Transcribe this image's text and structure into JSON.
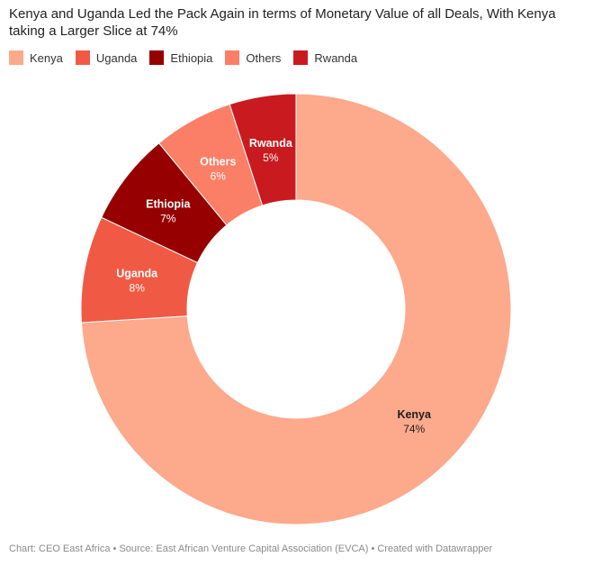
{
  "title": "Kenya and Uganda Led the Pack Again in terms of Monetary Value of all Deals, With Kenya taking a Larger Slice at 74%",
  "footer": "Chart: CEO East Africa • Source: East African Venture Capital Association (EVCA) • Created with Datawrapper",
  "chart_data": {
    "type": "pie",
    "variant": "donut",
    "title": "Kenya and Uganda Led the Pack Again in terms of Monetary Value of all Deals, With Kenya taking a Larger Slice at 74%",
    "legend_position": "top-left",
    "categories": [
      "Kenya",
      "Uganda",
      "Ethiopia",
      "Others",
      "Rwanda"
    ],
    "values": [
      74,
      8,
      7,
      6,
      5
    ],
    "labels": [
      "74%",
      "8%",
      "7%",
      "6%",
      "5%"
    ],
    "colors": [
      "#fda98c",
      "#f05a44",
      "#960000",
      "#fb7f66",
      "#c91b1f"
    ],
    "label_text_colors": [
      "#1d1d1d",
      "#ffffff",
      "#ffffff",
      "#ffffff",
      "#ffffff"
    ]
  }
}
